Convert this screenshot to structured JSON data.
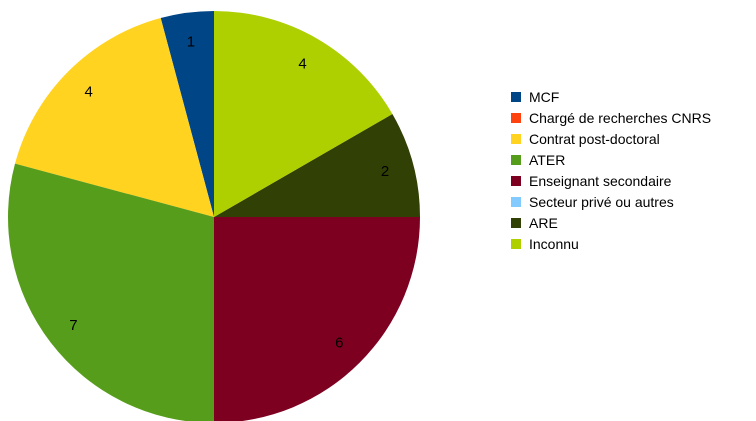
{
  "chart_data": {
    "type": "pie",
    "start_angle_deg": -90,
    "direction": "counterclockwise",
    "legend_position": "right",
    "slices": [
      {
        "label": "MCF",
        "value": 1,
        "color": "#004586",
        "show_label": true
      },
      {
        "label": "Chargé de recherches CNRS",
        "value": 0,
        "color": "#ff420e",
        "show_label": false
      },
      {
        "label": "Contrat post-doctoral",
        "value": 4,
        "color": "#ffd320",
        "show_label": true
      },
      {
        "label": "ATER",
        "value": 7,
        "color": "#579d1c",
        "show_label": true
      },
      {
        "label": "Enseignant secondaire",
        "value": 6,
        "color": "#7e0021",
        "show_label": true
      },
      {
        "label": "Secteur privé ou autres",
        "value": 0,
        "color": "#83caff",
        "show_label": false
      },
      {
        "label": "ARE",
        "value": 2,
        "color": "#314004",
        "show_label": true
      },
      {
        "label": "Inconnu",
        "value": 4,
        "color": "#aecf00",
        "show_label": true
      }
    ]
  }
}
